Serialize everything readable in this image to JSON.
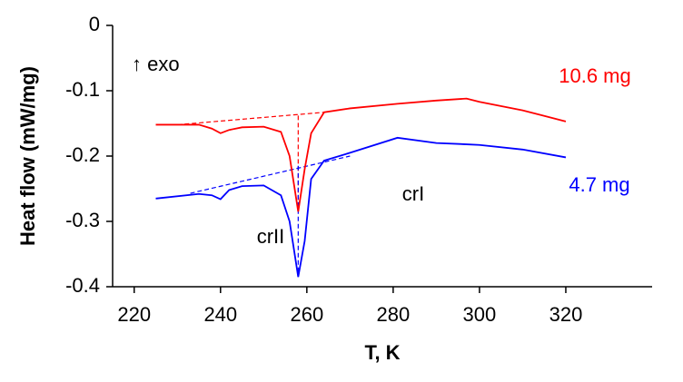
{
  "chart_data": {
    "type": "line",
    "y_label": "Heat flow (mW/mg)",
    "x_label": "T, K",
    "annotations": [
      "↑ exo",
      "crI",
      "crII"
    ],
    "x": [
      225,
      235,
      238,
      240,
      242,
      245,
      250,
      254,
      256,
      258,
      259.5,
      261,
      264,
      270,
      281,
      290,
      297,
      300,
      310,
      320
    ],
    "series": [
      {
        "name": "10.6 mg",
        "color": "#ff0000",
        "values": [
          -0.152,
          -0.152,
          -0.158,
          -0.165,
          -0.16,
          -0.156,
          -0.155,
          -0.163,
          -0.2,
          -0.285,
          -0.22,
          -0.165,
          -0.133,
          -0.127,
          -0.12,
          -0.115,
          -0.112,
          -0.117,
          -0.13,
          -0.147
        ]
      },
      {
        "name": "4.7 mg",
        "color": "#0000ff",
        "values": [
          -0.265,
          -0.258,
          -0.26,
          -0.266,
          -0.252,
          -0.246,
          -0.245,
          -0.26,
          -0.3,
          -0.385,
          -0.33,
          -0.235,
          -0.207,
          -0.195,
          -0.172,
          -0.18,
          -0.182,
          -0.183,
          -0.19,
          -0.202
        ]
      }
    ],
    "reference_lines": [
      {
        "color": "#ff0000",
        "x": [
          230,
          264
        ],
        "y": [
          -0.152,
          -0.133
        ]
      },
      {
        "color": "#ff0000",
        "x": [
          258,
          258
        ],
        "y": [
          -0.138,
          -0.285
        ]
      },
      {
        "color": "#0000ff",
        "x": [
          233,
          270
        ],
        "y": [
          -0.257,
          -0.2
        ]
      },
      {
        "color": "#0000ff",
        "x": [
          258,
          258
        ],
        "y": [
          -0.215,
          -0.385
        ]
      }
    ],
    "xlim": [
      215,
      340
    ],
    "ylim": [
      -0.4,
      0
    ],
    "xticks": [
      220,
      240,
      260,
      280,
      300,
      320
    ],
    "yticks": [
      0,
      -0.1,
      -0.2,
      -0.3,
      -0.4
    ]
  }
}
